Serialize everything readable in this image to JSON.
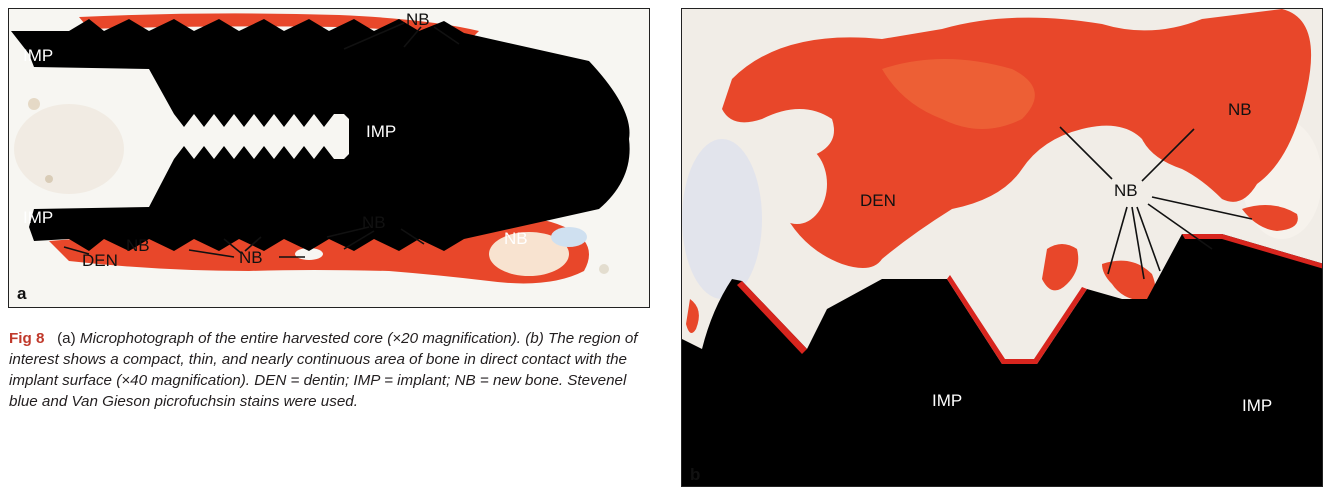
{
  "panel_a": {
    "letter": "a",
    "labels": {
      "imp_top": "IMP",
      "imp_center": "IMP",
      "imp_bottom": "IMP",
      "nb_top": "NB",
      "nb_bottom_mid": "NB",
      "nb_bottom_right": "NB",
      "nb_bottom_left": "NB",
      "nb_bottom_center": "NB",
      "den": "DEN"
    }
  },
  "panel_b": {
    "letter": "b",
    "labels": {
      "nb_top_right": "NB",
      "nb_center": "NB",
      "den": "DEN",
      "imp_left": "IMP",
      "imp_right": "IMP"
    }
  },
  "caption": {
    "fig_label": "Fig 8",
    "part1": "(a)",
    "part2": "Microphotograph of the entire harvested core (×20 magnification). (b) The region of interest shows a compact, thin, and nearly continuous area of bone in direct contact with the implant surface (×40 magnification). DEN = dentin; IMP = implant; NB = new bone. Stevenel blue and Van Gieson picrofuchsin stains were used."
  },
  "colors": {
    "implant": "#000000",
    "bone": "#e8472a",
    "tissue": "#f3efe8"
  }
}
